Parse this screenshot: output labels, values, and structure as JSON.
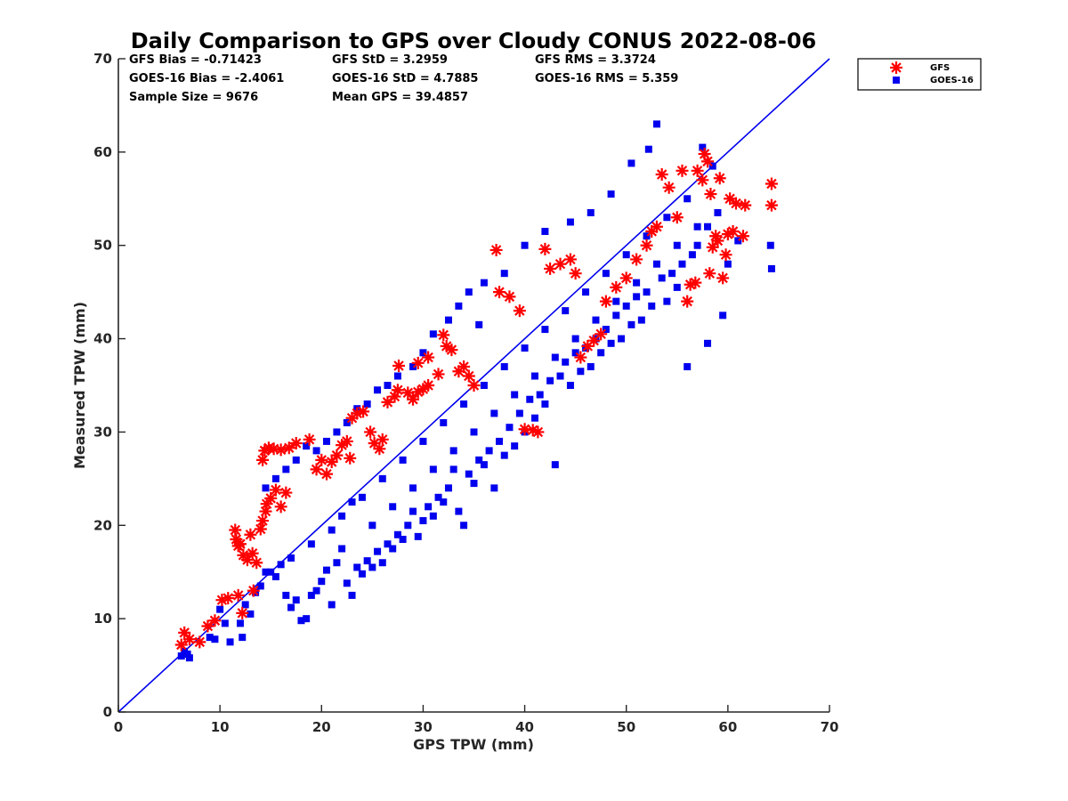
{
  "chart_data": {
    "type": "scatter",
    "title": "Daily Comparison to GPS over Cloudy CONUS 2022-08-06",
    "xlabel": "GPS TPW (mm)",
    "ylabel": "Measured TPW (mm)",
    "xlim": [
      0,
      70
    ],
    "ylim": [
      0,
      70
    ],
    "xticks": [
      0,
      10,
      20,
      30,
      40,
      50,
      60,
      70
    ],
    "yticks": [
      0,
      10,
      20,
      30,
      40,
      50,
      60,
      70
    ],
    "grid": false,
    "legend_position": "top-right outside",
    "reference_line": {
      "x": [
        0,
        70
      ],
      "y": [
        0,
        70
      ],
      "color": "#0000ee"
    },
    "stats": [
      {
        "label": "GFS Bias = -0.71423"
      },
      {
        "label": "GFS StD = 3.2959"
      },
      {
        "label": "GFS RMS = 3.3724"
      },
      {
        "label": "GOES-16 Bias = -2.4061"
      },
      {
        "label": "GOES-16 StD = 4.7885"
      },
      {
        "label": "GOES-16 RMS = 5.359"
      },
      {
        "label": "Sample Size = 9676"
      },
      {
        "label": "Mean GPS = 39.4857"
      }
    ],
    "series": [
      {
        "name": "GFS",
        "marker": "asterisk",
        "color": "#ff0000",
        "points": [
          [
            6.5,
            8.5
          ],
          [
            6.2,
            7.2
          ],
          [
            7.0,
            7.8
          ],
          [
            8.0,
            7.5
          ],
          [
            8.8,
            9.2
          ],
          [
            9.5,
            9.8
          ],
          [
            10.2,
            12.0
          ],
          [
            10.8,
            12.2
          ],
          [
            11.8,
            12.5
          ],
          [
            12.2,
            10.6
          ],
          [
            11.5,
            19.5
          ],
          [
            11.6,
            18.5
          ],
          [
            11.8,
            17.8
          ],
          [
            12.0,
            18.0
          ],
          [
            12.3,
            16.8
          ],
          [
            12.7,
            16.3
          ],
          [
            13.0,
            19.0
          ],
          [
            13.2,
            17.0
          ],
          [
            13.6,
            16.0
          ],
          [
            14.0,
            19.6
          ],
          [
            13.3,
            13.0
          ],
          [
            14.2,
            20.5
          ],
          [
            14.5,
            21.5
          ],
          [
            14.6,
            22.3
          ],
          [
            15.0,
            22.9
          ],
          [
            15.5,
            23.8
          ],
          [
            16.0,
            22.0
          ],
          [
            16.5,
            23.5
          ],
          [
            14.2,
            27.0
          ],
          [
            14.4,
            28.0
          ],
          [
            14.8,
            28.3
          ],
          [
            15.3,
            28.2
          ],
          [
            16.0,
            28.1
          ],
          [
            16.8,
            28.3
          ],
          [
            17.5,
            28.8
          ],
          [
            18.8,
            29.2
          ],
          [
            19.5,
            26.0
          ],
          [
            20.0,
            27.0
          ],
          [
            20.5,
            25.5
          ],
          [
            21.0,
            26.8
          ],
          [
            21.5,
            27.5
          ],
          [
            22.0,
            28.6
          ],
          [
            22.5,
            29.0
          ],
          [
            22.8,
            27.2
          ],
          [
            23.0,
            31.5
          ],
          [
            23.5,
            32.0
          ],
          [
            24.1,
            32.2
          ],
          [
            24.8,
            30.0
          ],
          [
            25.2,
            28.8
          ],
          [
            25.7,
            28.2
          ],
          [
            26.0,
            29.2
          ],
          [
            26.5,
            33.2
          ],
          [
            27.2,
            33.8
          ],
          [
            27.5,
            34.5
          ],
          [
            28.5,
            34.2
          ],
          [
            29.0,
            33.5
          ],
          [
            29.5,
            34.3
          ],
          [
            30.0,
            34.6
          ],
          [
            30.5,
            35.0
          ],
          [
            31.5,
            36.2
          ],
          [
            32.0,
            40.4
          ],
          [
            32.3,
            39.2
          ],
          [
            32.8,
            38.8
          ],
          [
            33.5,
            36.5
          ],
          [
            34.0,
            37.0
          ],
          [
            34.5,
            36.0
          ],
          [
            35.0,
            35.0
          ],
          [
            27.6,
            37.1
          ],
          [
            29.5,
            37.4
          ],
          [
            30.5,
            38.0
          ],
          [
            37.2,
            49.5
          ],
          [
            37.5,
            45.0
          ],
          [
            38.5,
            44.5
          ],
          [
            39.5,
            43.0
          ],
          [
            40.0,
            30.3
          ],
          [
            40.8,
            30.2
          ],
          [
            41.3,
            30.0
          ],
          [
            42.0,
            49.6
          ],
          [
            42.5,
            47.5
          ],
          [
            43.5,
            48.0
          ],
          [
            44.5,
            48.5
          ],
          [
            45.0,
            47.0
          ],
          [
            45.5,
            38.0
          ],
          [
            46.2,
            39.2
          ],
          [
            46.8,
            39.8
          ],
          [
            47.5,
            40.5
          ],
          [
            48.0,
            44.0
          ],
          [
            49.0,
            45.5
          ],
          [
            50.0,
            46.5
          ],
          [
            51.0,
            48.5
          ],
          [
            52.0,
            50.0
          ],
          [
            52.5,
            51.5
          ],
          [
            53.0,
            52.0
          ],
          [
            53.5,
            57.6
          ],
          [
            54.2,
            56.2
          ],
          [
            55.0,
            53.0
          ],
          [
            55.5,
            58.0
          ],
          [
            56.0,
            44.0
          ],
          [
            56.3,
            45.8
          ],
          [
            56.8,
            46.0
          ],
          [
            57.0,
            58.0
          ],
          [
            57.5,
            57.0
          ],
          [
            57.7,
            59.8
          ],
          [
            58.0,
            59.0
          ],
          [
            58.3,
            55.5
          ],
          [
            58.5,
            49.8
          ],
          [
            58.8,
            51.0
          ],
          [
            59.0,
            50.5
          ],
          [
            59.2,
            57.2
          ],
          [
            59.5,
            46.5
          ],
          [
            59.8,
            49.0
          ],
          [
            60.0,
            51.2
          ],
          [
            60.2,
            55.0
          ],
          [
            60.5,
            51.5
          ],
          [
            60.8,
            54.5
          ],
          [
            61.5,
            51.0
          ],
          [
            61.7,
            54.3
          ],
          [
            64.3,
            56.6
          ],
          [
            64.3,
            54.3
          ],
          [
            58.2,
            47.0
          ]
        ]
      },
      {
        "name": "GOES-16",
        "marker": "square",
        "color": "#0000ee",
        "points": [
          [
            6.2,
            6.0
          ],
          [
            6.5,
            6.5
          ],
          [
            6.8,
            6.2
          ],
          [
            7.0,
            5.8
          ],
          [
            9.0,
            8.0
          ],
          [
            9.5,
            7.8
          ],
          [
            10.0,
            11.0
          ],
          [
            10.5,
            9.5
          ],
          [
            11.0,
            7.5
          ],
          [
            12.0,
            9.5
          ],
          [
            12.2,
            8.0
          ],
          [
            12.5,
            11.5
          ],
          [
            13.0,
            10.5
          ],
          [
            13.5,
            12.8
          ],
          [
            14.0,
            13.5
          ],
          [
            14.5,
            15.0
          ],
          [
            15.0,
            15.0
          ],
          [
            15.5,
            14.5
          ],
          [
            16.0,
            15.8
          ],
          [
            16.5,
            12.5
          ],
          [
            17.0,
            11.2
          ],
          [
            17.5,
            12.0
          ],
          [
            18.0,
            9.8
          ],
          [
            18.5,
            10.0
          ],
          [
            19.0,
            12.5
          ],
          [
            19.5,
            13.0
          ],
          [
            20.0,
            14.0
          ],
          [
            20.5,
            15.2
          ],
          [
            21.0,
            11.5
          ],
          [
            21.5,
            16.0
          ],
          [
            22.0,
            17.5
          ],
          [
            22.5,
            13.8
          ],
          [
            23.0,
            12.5
          ],
          [
            23.5,
            15.5
          ],
          [
            24.0,
            14.8
          ],
          [
            24.5,
            16.2
          ],
          [
            25.0,
            15.5
          ],
          [
            25.5,
            17.2
          ],
          [
            26.0,
            16.0
          ],
          [
            26.5,
            18.0
          ],
          [
            27.0,
            17.5
          ],
          [
            27.5,
            19.0
          ],
          [
            28.0,
            18.5
          ],
          [
            28.5,
            20.0
          ],
          [
            29.0,
            21.5
          ],
          [
            29.5,
            18.8
          ],
          [
            30.0,
            20.5
          ],
          [
            30.5,
            22.0
          ],
          [
            31.0,
            21.0
          ],
          [
            31.5,
            23.0
          ],
          [
            32.0,
            22.5
          ],
          [
            32.5,
            24.0
          ],
          [
            33.0,
            26.0
          ],
          [
            33.5,
            21.5
          ],
          [
            34.0,
            20.0
          ],
          [
            34.5,
            25.5
          ],
          [
            35.0,
            24.5
          ],
          [
            35.5,
            27.0
          ],
          [
            36.0,
            26.5
          ],
          [
            36.5,
            28.0
          ],
          [
            37.0,
            24.0
          ],
          [
            37.5,
            29.0
          ],
          [
            38.0,
            27.5
          ],
          [
            38.5,
            30.5
          ],
          [
            39.0,
            28.5
          ],
          [
            39.5,
            32.0
          ],
          [
            40.0,
            30.0
          ],
          [
            40.5,
            33.5
          ],
          [
            41.0,
            31.5
          ],
          [
            41.5,
            34.0
          ],
          [
            42.0,
            33.0
          ],
          [
            42.5,
            35.5
          ],
          [
            43.0,
            26.5
          ],
          [
            43.5,
            36.0
          ],
          [
            44.0,
            37.5
          ],
          [
            44.5,
            35.0
          ],
          [
            45.0,
            38.5
          ],
          [
            45.5,
            36.5
          ],
          [
            46.0,
            39.0
          ],
          [
            46.5,
            37.0
          ],
          [
            47.0,
            40.0
          ],
          [
            47.5,
            38.5
          ],
          [
            48.0,
            41.0
          ],
          [
            48.5,
            39.5
          ],
          [
            49.0,
            42.5
          ],
          [
            49.5,
            40.0
          ],
          [
            50.0,
            43.5
          ],
          [
            50.5,
            41.5
          ],
          [
            51.0,
            44.5
          ],
          [
            51.5,
            42.0
          ],
          [
            52.0,
            45.0
          ],
          [
            52.5,
            43.5
          ],
          [
            53.0,
            63.0
          ],
          [
            53.5,
            46.5
          ],
          [
            54.0,
            44.0
          ],
          [
            54.5,
            47.0
          ],
          [
            55.0,
            45.5
          ],
          [
            55.5,
            48.0
          ],
          [
            56.0,
            37.0
          ],
          [
            56.5,
            49.0
          ],
          [
            57.0,
            50.0
          ],
          [
            57.5,
            60.5
          ],
          [
            58.0,
            52.0
          ],
          [
            58.5,
            58.5
          ],
          [
            59.0,
            53.5
          ],
          [
            59.5,
            42.5
          ],
          [
            60.0,
            48.0
          ],
          [
            61.0,
            50.5
          ],
          [
            64.2,
            50.0
          ],
          [
            64.3,
            47.5
          ],
          [
            58.0,
            39.5
          ],
          [
            52.2,
            60.3
          ],
          [
            50.5,
            58.8
          ],
          [
            48.5,
            55.5
          ],
          [
            46.5,
            53.5
          ],
          [
            44.5,
            52.5
          ],
          [
            42.0,
            51.5
          ],
          [
            40.0,
            50.0
          ],
          [
            38.0,
            47.0
          ],
          [
            36.0,
            46.0
          ],
          [
            34.5,
            45.0
          ],
          [
            33.5,
            43.5
          ],
          [
            32.5,
            42.0
          ],
          [
            31.0,
            40.5
          ],
          [
            30.0,
            38.5
          ],
          [
            29.0,
            37.0
          ],
          [
            27.5,
            36.0
          ],
          [
            26.5,
            35.0
          ],
          [
            25.5,
            34.5
          ],
          [
            24.5,
            33.0
          ],
          [
            23.5,
            32.5
          ],
          [
            22.5,
            31.0
          ],
          [
            21.5,
            30.0
          ],
          [
            20.5,
            29.0
          ],
          [
            19.5,
            28.0
          ],
          [
            18.5,
            28.5
          ],
          [
            17.5,
            27.0
          ],
          [
            16.5,
            26.0
          ],
          [
            15.5,
            25.0
          ],
          [
            14.5,
            24.0
          ],
          [
            25.0,
            20.0
          ],
          [
            27.0,
            22.0
          ],
          [
            29.0,
            24.0
          ],
          [
            31.0,
            26.0
          ],
          [
            33.0,
            28.0
          ],
          [
            35.0,
            30.0
          ],
          [
            37.0,
            32.0
          ],
          [
            39.0,
            34.0
          ],
          [
            41.0,
            36.0
          ],
          [
            43.0,
            38.0
          ],
          [
            45.0,
            40.0
          ],
          [
            47.0,
            42.0
          ],
          [
            49.0,
            44.0
          ],
          [
            51.0,
            46.0
          ],
          [
            53.0,
            48.0
          ],
          [
            55.0,
            50.0
          ],
          [
            57.0,
            52.0
          ],
          [
            22.0,
            21.0
          ],
          [
            24.0,
            23.0
          ],
          [
            26.0,
            25.0
          ],
          [
            28.0,
            27.0
          ],
          [
            30.0,
            29.0
          ],
          [
            32.0,
            31.0
          ],
          [
            34.0,
            33.0
          ],
          [
            36.0,
            35.0
          ],
          [
            38.0,
            37.0
          ],
          [
            40.0,
            39.0
          ],
          [
            42.0,
            41.0
          ],
          [
            44.0,
            43.0
          ],
          [
            46.0,
            45.0
          ],
          [
            48.0,
            47.0
          ],
          [
            50.0,
            49.0
          ],
          [
            52.0,
            51.0
          ],
          [
            54.0,
            53.0
          ],
          [
            56.0,
            55.0
          ],
          [
            19.0,
            18.0
          ],
          [
            17.0,
            16.5
          ],
          [
            21.0,
            19.5
          ],
          [
            23.0,
            22.5
          ],
          [
            35.5,
            41.5
          ]
        ]
      }
    ]
  }
}
